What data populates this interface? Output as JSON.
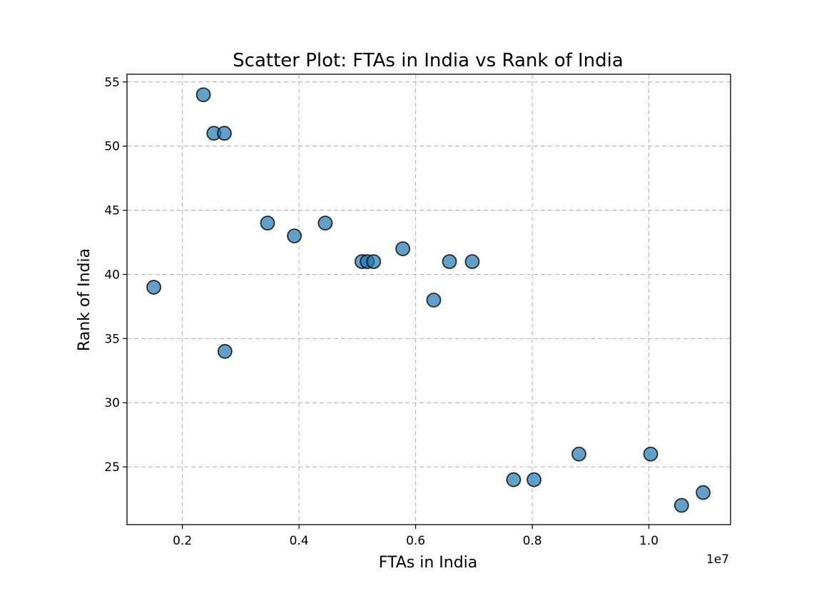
{
  "chart_data": {
    "type": "scatter",
    "title": "Scatter Plot: FTAs in India vs Rank of India",
    "xlabel": "FTAs in India",
    "ylabel": "Rank of India",
    "x_offset_label": "1e7",
    "xlim": [
      1050000,
      11400000
    ],
    "ylim": [
      20.5,
      55.6
    ],
    "xticks": [
      {
        "value": 2000000,
        "label": "0.2"
      },
      {
        "value": 4000000,
        "label": "0.4"
      },
      {
        "value": 6000000,
        "label": "0.6"
      },
      {
        "value": 8000000,
        "label": "0.8"
      },
      {
        "value": 10000000,
        "label": "1.0"
      }
    ],
    "yticks": [
      {
        "value": 25,
        "label": "25"
      },
      {
        "value": 30,
        "label": "30"
      },
      {
        "value": 35,
        "label": "35"
      },
      {
        "value": 40,
        "label": "40"
      },
      {
        "value": 45,
        "label": "45"
      },
      {
        "value": 50,
        "label": "50"
      },
      {
        "value": 55,
        "label": "55"
      }
    ],
    "grid": true,
    "legend": "none",
    "point_color": "#1f77b4",
    "point_edge_color": "#000000",
    "point_alpha": 0.7,
    "points": [
      {
        "x": 1510000,
        "y": 39
      },
      {
        "x": 2360000,
        "y": 54
      },
      {
        "x": 2540000,
        "y": 51
      },
      {
        "x": 2720000,
        "y": 51
      },
      {
        "x": 2730000,
        "y": 34
      },
      {
        "x": 3460000,
        "y": 44
      },
      {
        "x": 3920000,
        "y": 43
      },
      {
        "x": 4450000,
        "y": 44
      },
      {
        "x": 5080000,
        "y": 41
      },
      {
        "x": 5170000,
        "y": 41
      },
      {
        "x": 5280000,
        "y": 41
      },
      {
        "x": 5780000,
        "y": 42
      },
      {
        "x": 6310000,
        "y": 38
      },
      {
        "x": 6580000,
        "y": 41
      },
      {
        "x": 6970000,
        "y": 41
      },
      {
        "x": 7680000,
        "y": 24
      },
      {
        "x": 8030000,
        "y": 24
      },
      {
        "x": 8800000,
        "y": 26
      },
      {
        "x": 10030000,
        "y": 26
      },
      {
        "x": 10560000,
        "y": 22
      },
      {
        "x": 10930000,
        "y": 23
      }
    ]
  }
}
